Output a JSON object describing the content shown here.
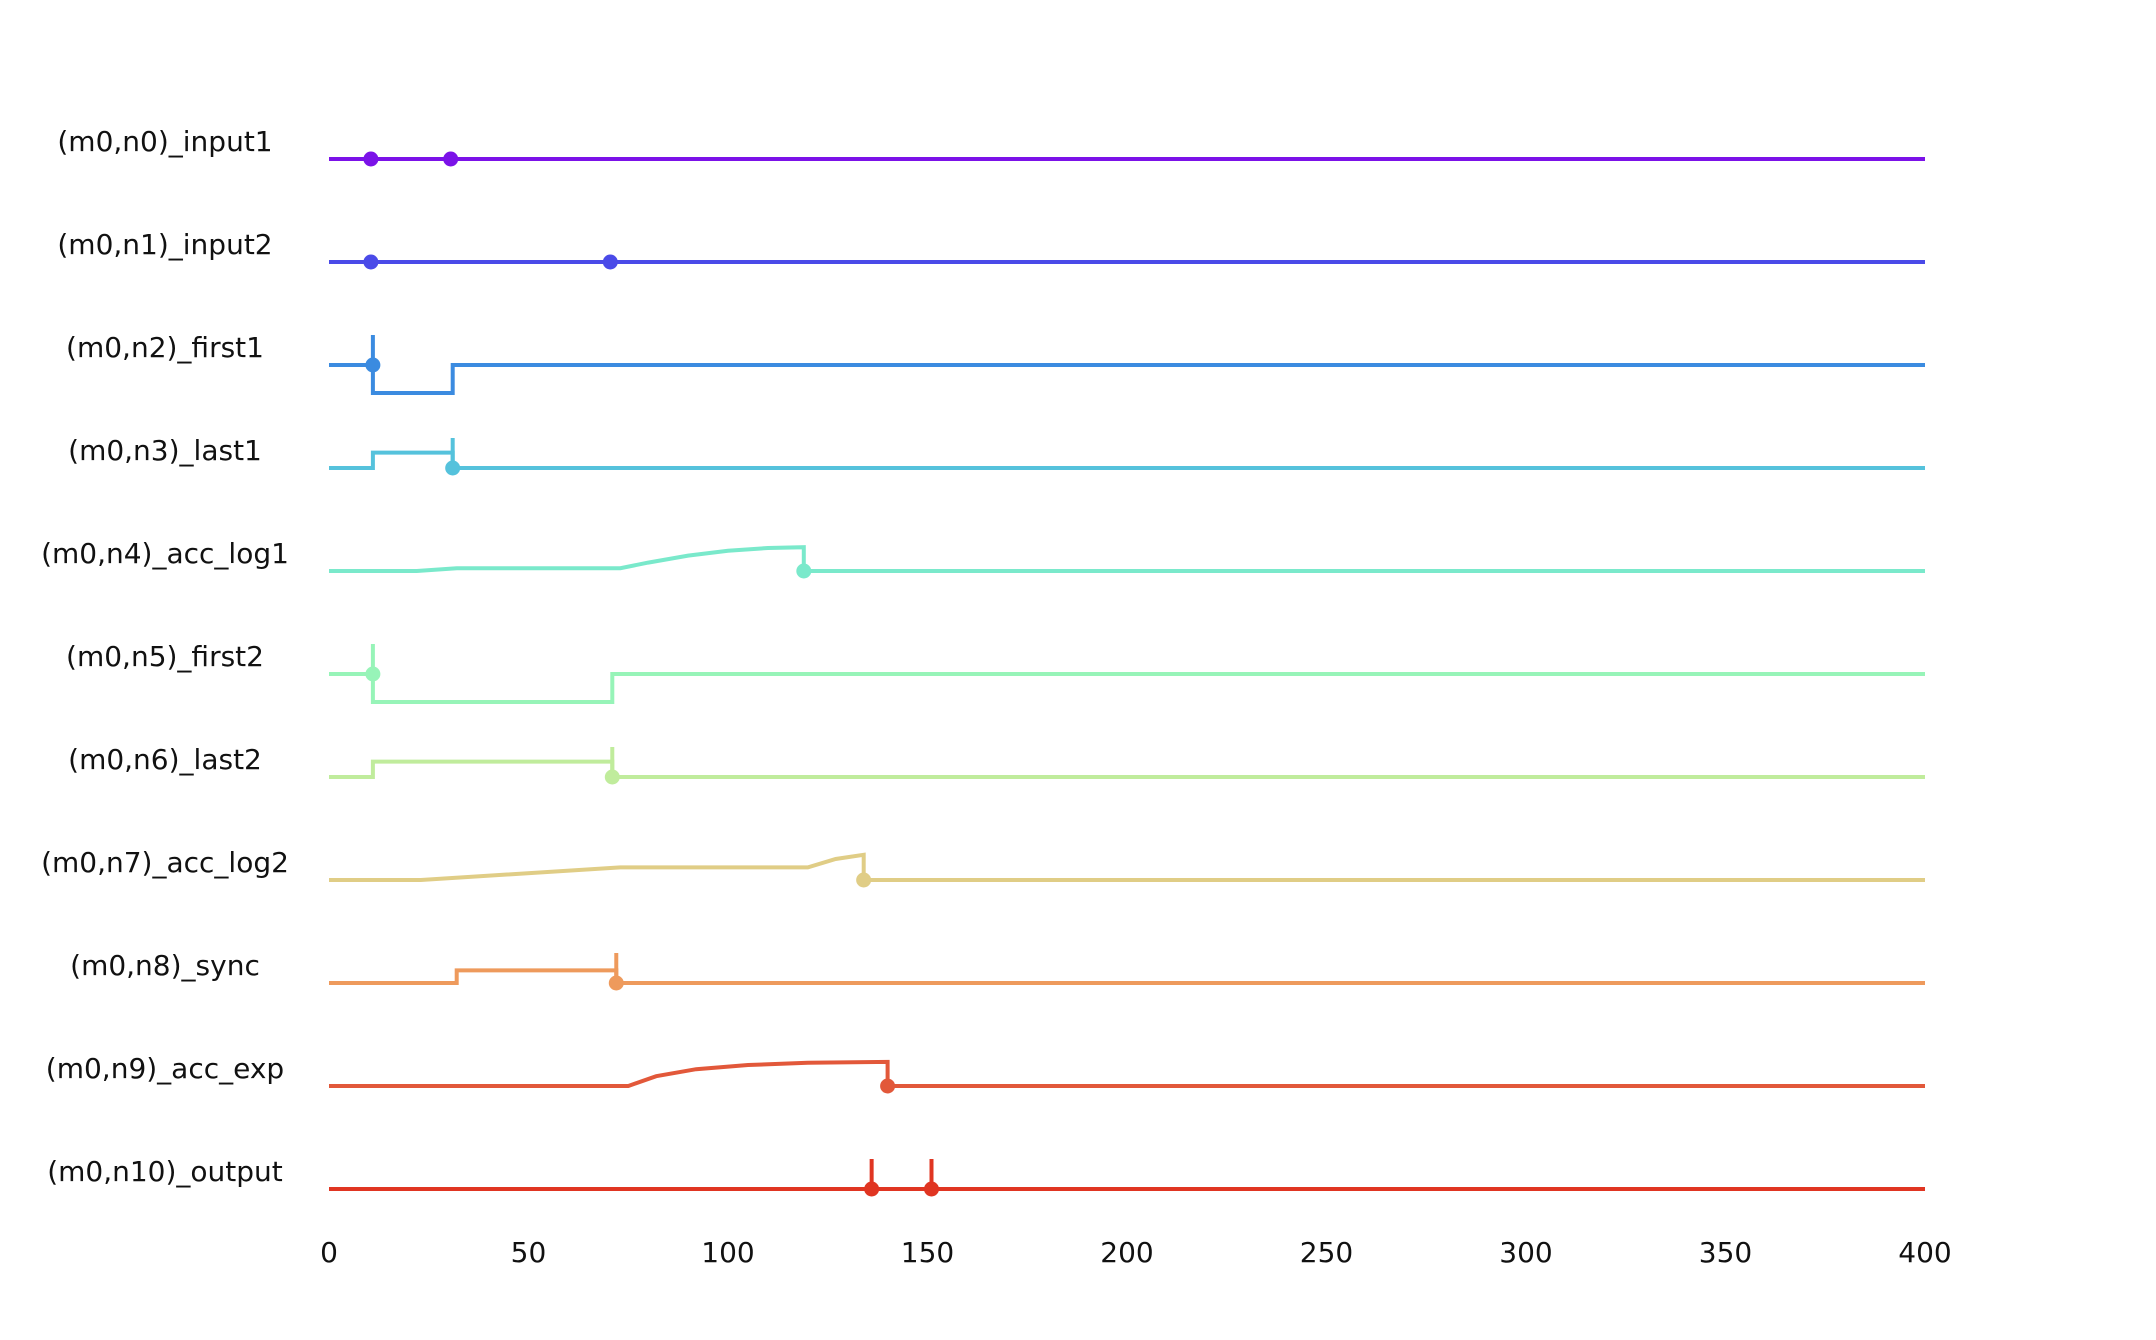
{
  "chart_data": {
    "type": "line",
    "title": "",
    "xlabel": "",
    "ylabel": "",
    "xlim": [
      0,
      400
    ],
    "xticks": [
      0,
      50,
      100,
      150,
      200,
      250,
      300,
      350,
      400
    ],
    "grid": false,
    "legend": "none",
    "series": [
      {
        "name": "(m0,n0)_input1",
        "color": "#7b12e8",
        "trace": [
          [
            0,
            0
          ],
          [
            400,
            0
          ]
        ],
        "events": [
          10.5,
          30.5
        ],
        "spikes": []
      },
      {
        "name": "(m0,n1)_input2",
        "color": "#4a4ae8",
        "trace": [
          [
            0,
            0
          ],
          [
            400,
            0
          ]
        ],
        "events": [
          10.5,
          70.5
        ],
        "spikes": []
      },
      {
        "name": "(m0,n2)_first1",
        "color": "#3b8be0",
        "trace": [
          [
            0,
            0
          ],
          [
            11,
            0
          ],
          [
            11,
            -1
          ],
          [
            31,
            -1
          ],
          [
            31,
            0
          ],
          [
            400,
            0
          ]
        ],
        "events": [
          11
        ],
        "spikes": [
          11
        ]
      },
      {
        "name": "(m0,n3)_last1",
        "color": "#55c2dc",
        "trace": [
          [
            0,
            0
          ],
          [
            11,
            0
          ],
          [
            11,
            0.55
          ],
          [
            31,
            0.55
          ],
          [
            31,
            0
          ],
          [
            400,
            0
          ]
        ],
        "events": [
          31
        ],
        "spikes": [
          31
        ]
      },
      {
        "name": "(m0,n4)_acc_log1",
        "color": "#7ae9cb",
        "trace": [
          [
            0,
            0
          ],
          [
            22,
            0
          ],
          [
            32,
            0.1
          ],
          [
            73,
            0.1
          ],
          [
            80,
            0.3
          ],
          [
            90,
            0.55
          ],
          [
            100,
            0.72
          ],
          [
            110,
            0.82
          ],
          [
            119,
            0.85
          ],
          [
            119,
            0
          ],
          [
            400,
            0
          ]
        ],
        "events": [
          119
        ],
        "spikes": []
      },
      {
        "name": "(m0,n5)_first2",
        "color": "#97f4b8",
        "trace": [
          [
            0,
            0
          ],
          [
            11,
            0
          ],
          [
            11,
            -1
          ],
          [
            71,
            -1
          ],
          [
            71,
            0
          ],
          [
            400,
            0
          ]
        ],
        "events": [
          11
        ],
        "spikes": [
          11
        ]
      },
      {
        "name": "(m0,n6)_last2",
        "color": "#c0ec9c",
        "trace": [
          [
            0,
            0
          ],
          [
            11,
            0
          ],
          [
            11,
            0.55
          ],
          [
            71,
            0.55
          ],
          [
            71,
            0
          ],
          [
            400,
            0
          ]
        ],
        "events": [
          71
        ],
        "spikes": [
          71
        ]
      },
      {
        "name": "(m0,n7)_acc_log2",
        "color": "#e0cd86",
        "trace": [
          [
            0,
            0
          ],
          [
            23,
            0
          ],
          [
            73,
            0.45
          ],
          [
            120,
            0.45
          ],
          [
            127,
            0.75
          ],
          [
            134,
            0.9
          ],
          [
            134,
            0
          ],
          [
            400,
            0
          ]
        ],
        "events": [
          134
        ],
        "spikes": []
      },
      {
        "name": "(m0,n8)_sync",
        "color": "#ee9a5c",
        "trace": [
          [
            0,
            0
          ],
          [
            32,
            0
          ],
          [
            32,
            0.45
          ],
          [
            72,
            0.45
          ],
          [
            72,
            0
          ],
          [
            400,
            0
          ]
        ],
        "events": [
          72
        ],
        "spikes": [
          72
        ]
      },
      {
        "name": "(m0,n9)_acc_exp",
        "color": "#e2583a",
        "trace": [
          [
            0,
            0
          ],
          [
            75,
            0
          ],
          [
            82,
            0.35
          ],
          [
            92,
            0.6
          ],
          [
            105,
            0.75
          ],
          [
            120,
            0.83
          ],
          [
            140,
            0.86
          ],
          [
            140,
            0
          ],
          [
            400,
            0
          ]
        ],
        "events": [
          140
        ],
        "spikes": []
      },
      {
        "name": "(m0,n10)_output",
        "color": "#e03522",
        "trace": [
          [
            0,
            0
          ],
          [
            400,
            0
          ]
        ],
        "events": [
          136,
          151
        ],
        "spikes": [
          136,
          151
        ]
      }
    ]
  }
}
